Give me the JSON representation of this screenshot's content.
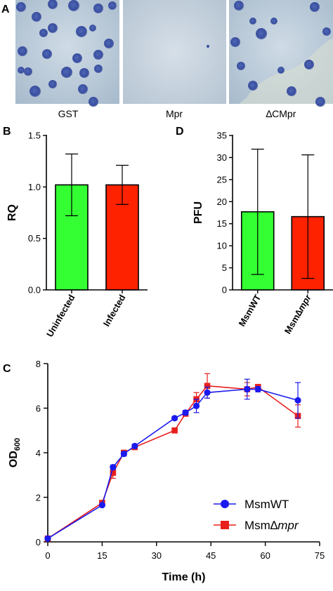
{
  "panels": {
    "a": {
      "letter": "A",
      "plate_labels": [
        "GST",
        "Mpr",
        "∆CMpr"
      ]
    },
    "b": {
      "letter": "B"
    },
    "c": {
      "letter": "C"
    },
    "d": {
      "letter": "D"
    }
  },
  "chart_data": [
    {
      "type": "bar",
      "panel": "B",
      "categories": [
        "Uninfected",
        "Infected"
      ],
      "values": [
        1.02,
        1.02
      ],
      "errors": [
        0.3,
        0.19
      ],
      "colors": [
        "#33ff33",
        "#ff2200"
      ],
      "ylabel": "RQ",
      "ylim": [
        0,
        1.5
      ],
      "yticks": [
        "0.0",
        "0.5",
        "1.0",
        "1.5"
      ],
      "grid": false
    },
    {
      "type": "bar",
      "panel": "D",
      "categories": [
        "MsmWT",
        "Msm∆mpr"
      ],
      "values": [
        17.7,
        16.6
      ],
      "errors": [
        14.2,
        14.0
      ],
      "colors": [
        "#33ff33",
        "#ff2200"
      ],
      "ylabel": "PFU",
      "ylim": [
        0,
        35
      ],
      "yticks": [
        "0",
        "5",
        "10",
        "15",
        "20",
        "25",
        "30",
        "35"
      ],
      "grid": false
    },
    {
      "type": "line",
      "panel": "C",
      "xlabel": "Time (h)",
      "ylabel": "OD",
      "ylabel_sub": "600",
      "xlim": [
        0,
        75
      ],
      "ylim": [
        0,
        8
      ],
      "xticks": [
        "0",
        "15",
        "30",
        "45",
        "60",
        "75"
      ],
      "yticks": [
        "0",
        "2",
        "4",
        "6",
        "8"
      ],
      "legend_position": "bottom-right",
      "grid": false,
      "series": [
        {
          "name": "MsmWT",
          "color": "#1a1aee",
          "marker": "circle",
          "x": [
            0,
            15,
            18,
            21,
            24,
            35,
            38,
            41,
            44,
            55,
            58,
            69
          ],
          "y": [
            0.15,
            1.65,
            3.35,
            3.95,
            4.3,
            5.55,
            5.8,
            6.1,
            6.7,
            6.85,
            6.85,
            6.35
          ],
          "err": [
            0.03,
            0.05,
            0.1,
            0.1,
            0.08,
            0.07,
            0.1,
            0.3,
            0.25,
            0.45,
            0.12,
            0.8
          ]
        },
        {
          "name": "Msm∆mpr",
          "name_parts": [
            "Msm∆",
            "mpr"
          ],
          "color": "#e8201c",
          "marker": "square",
          "x": [
            0,
            15,
            18,
            21,
            24,
            35,
            38,
            41,
            44,
            55,
            58,
            69
          ],
          "y": [
            0.15,
            1.75,
            3.1,
            4.0,
            4.25,
            5.0,
            5.75,
            6.4,
            7.0,
            6.85,
            6.95,
            5.65
          ],
          "err": [
            0.03,
            0.08,
            0.25,
            0.1,
            0.1,
            0.08,
            0.1,
            0.3,
            0.55,
            0.3,
            0.12,
            0.5
          ]
        }
      ]
    }
  ]
}
